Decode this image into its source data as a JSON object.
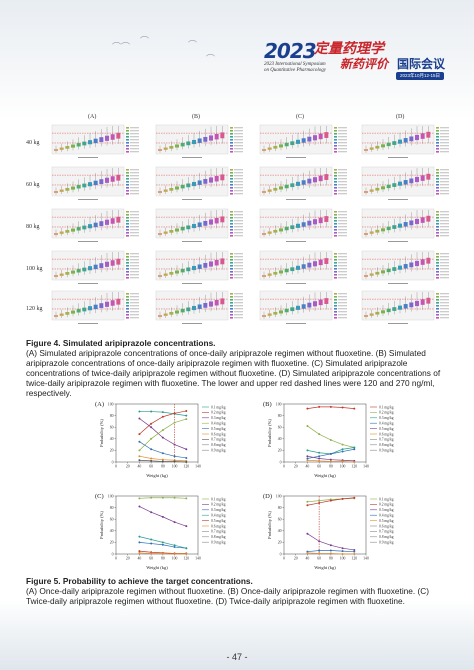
{
  "header": {
    "logo_year": "2023",
    "logo_cn_line1": "定量药理学",
    "logo_cn_line2": "新药评价",
    "logo_en_line1": "2023 International Symposium",
    "logo_en_line2": "on Quantitative Pharmacology",
    "logo_cn_suffix": "国际会议",
    "logo_date": "2023年10月12-15日"
  },
  "figure4": {
    "column_labels": [
      "(A)",
      "(B)",
      "(C)",
      "(D)"
    ],
    "row_labels": [
      "40 kg",
      "60 kg",
      "80 kg",
      "100 kg",
      "120 kg"
    ],
    "title": "Figure 4. Simulated aripiprazole concentrations.",
    "caption": "(A) Simulated aripiprazole concentrations of once-daily aripiprazole regimen without fluoxetine. (B) Simulated aripiprazole concentrations of once-daily aripiprazole regimen with fluoxetine. (C) Simulated aripiprazole concentrations of twice-daily aripiprazole regimen without fluoxetine. (D) Simulated aripiprazole concentrations of twice-daily aripiprazole regimen with fluoxetine. The lower and upper red dashed lines were 120 and 270 ng/ml, respectively."
  },
  "figure5": {
    "title": "Figure 5. Probability to achieve the target concentrations.",
    "caption": "(A) Once-daily aripiprazole regimen without fluoxetine. (B) Once-daily aripiprazole regimen with fluoxetine. (C) Twice-daily aripiprazole regimen without fluoxetine. (D) Twice-daily aripiprazole regimen with fluoxetine.",
    "ylabel": "Probability (%)",
    "xlabel": "Weight (kg)",
    "panels": [
      "(A)",
      "(B)",
      "(C)",
      "(D)"
    ]
  },
  "page_number": "- 47 -",
  "chart_data": [
    {
      "type": "line",
      "panel": "(A)",
      "x": [
        40,
        60,
        80,
        100,
        120
      ],
      "xlabel": "Weight (kg)",
      "ylabel": "Probability (%)",
      "xlim": [
        0,
        140
      ],
      "ylim": [
        0,
        100
      ],
      "legend": [
        "0.1 mg/kg",
        "0.2 mg/kg",
        "0.3 mg/kg",
        "0.4 mg/kg",
        "0.5 mg/kg",
        "0.6 mg/kg",
        "0.7 mg/kg",
        "0.8 mg/kg",
        "0.9 mg/kg"
      ],
      "series": [
        {
          "color": "#2b9c8f",
          "values": [
            87,
            87,
            86,
            83,
            80
          ]
        },
        {
          "color": "#c0392b",
          "values": [
            48,
            66,
            78,
            84,
            88
          ]
        },
        {
          "color": "#7a3b8f",
          "values": [
            75,
            60,
            42,
            30,
            22
          ]
        },
        {
          "color": "#8fb04a",
          "values": [
            20,
            40,
            55,
            68,
            74
          ]
        },
        {
          "color": "#2c6fb7",
          "values": [
            35,
            22,
            15,
            10,
            7
          ]
        },
        {
          "color": "#e08e2b",
          "values": [
            10,
            6,
            4,
            3,
            2
          ]
        },
        {
          "color": "#555555",
          "values": [
            3,
            2,
            1,
            1,
            0
          ]
        }
      ]
    },
    {
      "type": "line",
      "panel": "(B)",
      "x": [
        40,
        60,
        80,
        100,
        120
      ],
      "xlabel": "Weight (kg)",
      "ylabel": "Probability (%)",
      "xlim": [
        0,
        140
      ],
      "ylim": [
        0,
        100
      ],
      "legend": [
        "0.1 mg/kg",
        "0.2 mg/kg",
        "0.3 mg/kg",
        "0.4 mg/kg",
        "0.5 mg/kg",
        "0.6 mg/kg",
        "0.7 mg/kg",
        "0.8 mg/kg",
        "0.9 mg/kg"
      ],
      "series": [
        {
          "color": "#c0392b",
          "values": [
            92,
            95,
            95,
            94,
            92
          ]
        },
        {
          "color": "#8fb04a",
          "values": [
            62,
            48,
            38,
            30,
            25
          ]
        },
        {
          "color": "#2b9c8f",
          "values": [
            20,
            16,
            14,
            22,
            25
          ]
        },
        {
          "color": "#2c6fb7",
          "values": [
            6,
            10,
            14,
            18,
            22
          ]
        },
        {
          "color": "#7a3b8f",
          "values": [
            10,
            6,
            4,
            3,
            2
          ]
        },
        {
          "color": "#e08e2b",
          "values": [
            3,
            2,
            1,
            1,
            0
          ]
        }
      ]
    },
    {
      "type": "line",
      "panel": "(C)",
      "x": [
        40,
        60,
        80,
        100,
        120
      ],
      "xlabel": "Weight (kg)",
      "ylabel": "Probability (%)",
      "xlim": [
        0,
        140
      ],
      "ylim": [
        0,
        100
      ],
      "legend": [
        "0.1 mg/kg",
        "0.2 mg/kg",
        "0.3 mg/kg",
        "0.4 mg/kg",
        "0.5 mg/kg",
        "0.6 mg/kg",
        "0.7 mg/kg",
        "0.8 mg/kg",
        "0.9 mg/kg"
      ],
      "series": [
        {
          "color": "#8fb04a",
          "values": [
            96,
            97,
            97,
            97,
            96
          ]
        },
        {
          "color": "#7a3b8f",
          "values": [
            82,
            72,
            64,
            55,
            48
          ]
        },
        {
          "color": "#2c6fb7",
          "values": [
            20,
            18,
            16,
            12,
            10
          ]
        },
        {
          "color": "#2b9c8f",
          "values": [
            30,
            25,
            20,
            15,
            10
          ]
        },
        {
          "color": "#c0392b",
          "values": [
            5,
            3,
            2,
            1,
            1
          ]
        },
        {
          "color": "#e08e2b",
          "values": [
            2,
            1,
            1,
            0,
            0
          ]
        }
      ]
    },
    {
      "type": "line",
      "panel": "(D)",
      "x": [
        40,
        60,
        80,
        100,
        120
      ],
      "xlabel": "Weight (kg)",
      "ylabel": "Probability (%)",
      "xlim": [
        0,
        140
      ],
      "ylim": [
        0,
        100
      ],
      "legend": [
        "0.1 mg/kg",
        "0.2 mg/kg",
        "0.3 mg/kg",
        "0.4 mg/kg",
        "0.5 mg/kg",
        "0.6 mg/kg",
        "0.7 mg/kg",
        "0.8 mg/kg",
        "0.9 mg/kg"
      ],
      "series": [
        {
          "color": "#8fb04a",
          "values": [
            90,
            92,
            94,
            95,
            96
          ]
        },
        {
          "color": "#c0392b",
          "values": [
            84,
            88,
            92,
            95,
            97
          ]
        },
        {
          "color": "#7a3b8f",
          "values": [
            35,
            22,
            15,
            10,
            7
          ]
        },
        {
          "color": "#2c6fb7",
          "values": [
            4,
            6,
            6,
            5,
            4
          ]
        },
        {
          "color": "#e08e2b",
          "values": [
            2,
            1,
            1,
            0,
            0
          ]
        }
      ]
    }
  ]
}
